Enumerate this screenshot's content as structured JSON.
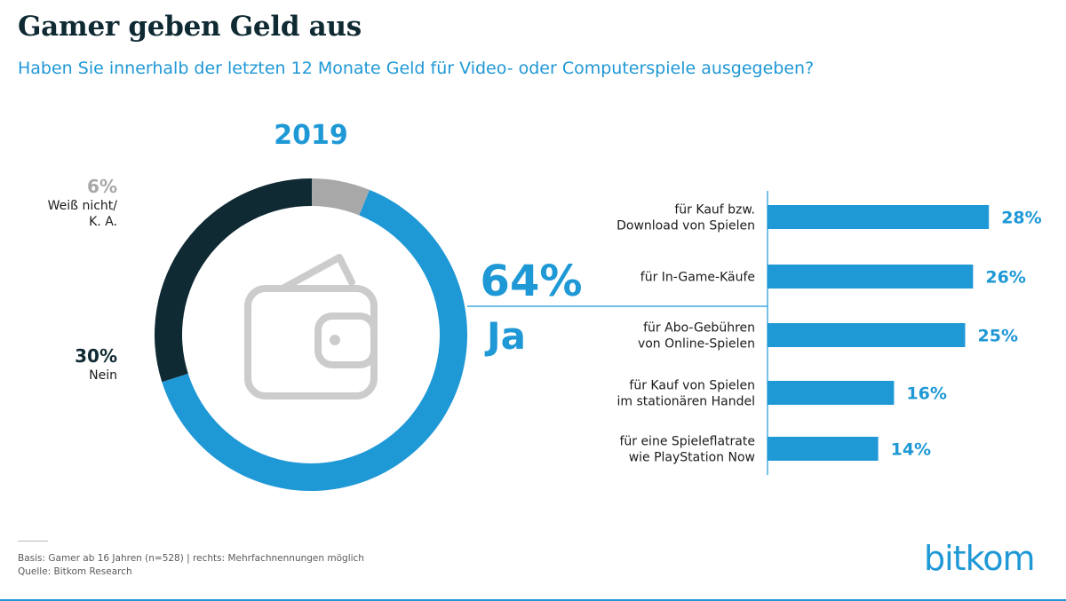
{
  "title": "Gamer geben Geld aus",
  "subtitle": "Haben Sie innerhalb der letzten 12 Monate Geld für Video- oder Computerspiele ausgegeben?",
  "footer": {
    "basis": "Basis: Gamer ab 16 Jahren (n=528) | rechts: Mehrfachnennungen möglich",
    "source": "Quelle: Bitkom Research"
  },
  "logo": "bitkom",
  "colors": {
    "blue": "#1f98d6",
    "dark": "#0f2a33",
    "grey": "#a8a8a8",
    "text": "#1a1a1a",
    "icon": "#cccccc"
  },
  "icons": {
    "center": "wallet-icon"
  },
  "chart_data": [
    {
      "type": "pie",
      "donut": true,
      "title": "2019",
      "slices": [
        {
          "value": 64,
          "label": "64%",
          "name": "Ja"
        },
        {
          "value": 30,
          "label": "30%",
          "name": "Nein"
        },
        {
          "value": 6,
          "label": "6%",
          "name": "Weiß nicht/\nK. A."
        }
      ]
    },
    {
      "type": "bar",
      "orientation": "horizontal",
      "categories": [
        "für Kauf bzw.\nDownload von Spielen",
        "für In-Game-Käufe",
        "für Abo-Gebühren\nvon Online-Spielen",
        "für Kauf von Spielen\nim stationären Handel",
        "für eine Spieleflatrate\nwie PlayStation Now"
      ],
      "values": [
        28,
        26,
        25,
        16,
        14
      ],
      "value_labels": [
        "28%",
        "26%",
        "25%",
        "16%",
        "14%"
      ]
    }
  ]
}
